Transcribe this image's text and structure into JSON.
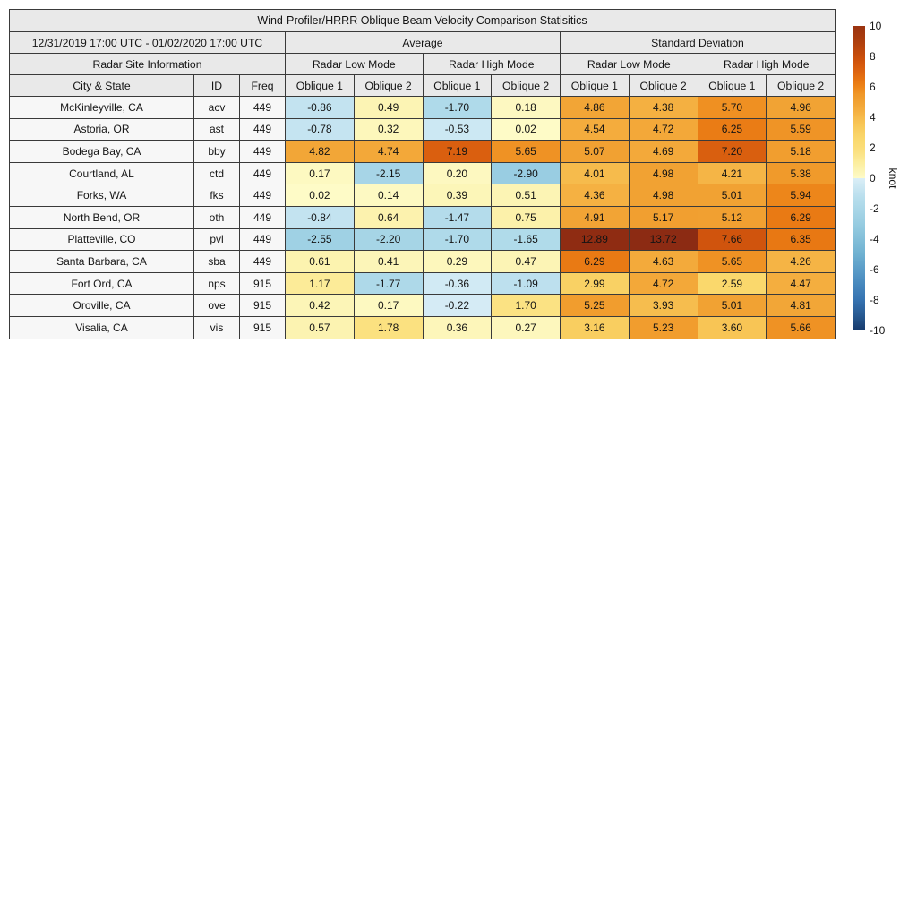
{
  "chart_data": {
    "type": "heatmap",
    "title": "Wind-Profiler/HRRR Oblique Beam Velocity Comparison Statisitics",
    "period": "12/31/2019 17:00 UTC - 01/02/2020 17:00 UTC",
    "col_groups": {
      "site": "Radar Site Information",
      "average": "Average",
      "std": "Standard Deviation",
      "low_mode": "Radar Low Mode",
      "high_mode": "Radar High Mode"
    },
    "col_headers": {
      "city": "City & State",
      "id": "ID",
      "freq": "Freq",
      "oblique1": "Oblique 1",
      "oblique2": "Oblique 2"
    },
    "value_columns": [
      "Average Radar Low Mode Oblique 1",
      "Average Radar Low Mode Oblique 2",
      "Average Radar High Mode Oblique 1",
      "Average Radar High Mode Oblique 2",
      "Std Dev Radar Low Mode Oblique 1",
      "Std Dev Radar Low Mode Oblique 2",
      "Std Dev Radar High Mode Oblique 1",
      "Std Dev Radar High Mode Oblique 2"
    ],
    "rows": [
      {
        "city": "McKinleyville, CA",
        "id": "acv",
        "freq": "449",
        "values": [
          "-0.86",
          "0.49",
          "-1.70",
          "0.18",
          "4.86",
          "4.38",
          "5.70",
          "4.96"
        ]
      },
      {
        "city": "Astoria, OR",
        "id": "ast",
        "freq": "449",
        "values": [
          "-0.78",
          "0.32",
          "-0.53",
          "0.02",
          "4.54",
          "4.72",
          "6.25",
          "5.59"
        ]
      },
      {
        "city": "Bodega Bay, CA",
        "id": "bby",
        "freq": "449",
        "values": [
          "4.82",
          "4.74",
          "7.19",
          "5.65",
          "5.07",
          "4.69",
          "7.20",
          "5.18"
        ]
      },
      {
        "city": "Courtland, AL",
        "id": "ctd",
        "freq": "449",
        "values": [
          "0.17",
          "-2.15",
          "0.20",
          "-2.90",
          "4.01",
          "4.98",
          "4.21",
          "5.38"
        ]
      },
      {
        "city": "Forks, WA",
        "id": "fks",
        "freq": "449",
        "values": [
          "0.02",
          "0.14",
          "0.39",
          "0.51",
          "4.36",
          "4.98",
          "5.01",
          "5.94"
        ]
      },
      {
        "city": "North Bend, OR",
        "id": "oth",
        "freq": "449",
        "values": [
          "-0.84",
          "0.64",
          "-1.47",
          "0.75",
          "4.91",
          "5.17",
          "5.12",
          "6.29"
        ]
      },
      {
        "city": "Platteville, CO",
        "id": "pvl",
        "freq": "449",
        "values": [
          "-2.55",
          "-2.20",
          "-1.70",
          "-1.65",
          "12.89",
          "13.72",
          "7.66",
          "6.35"
        ]
      },
      {
        "city": "Santa Barbara, CA",
        "id": "sba",
        "freq": "449",
        "values": [
          "0.61",
          "0.41",
          "0.29",
          "0.47",
          "6.29",
          "4.63",
          "5.65",
          "4.26"
        ]
      },
      {
        "city": "Fort Ord, CA",
        "id": "nps",
        "freq": "915",
        "values": [
          "1.17",
          "-1.77",
          "-0.36",
          "-1.09",
          "2.99",
          "4.72",
          "2.59",
          "4.47"
        ]
      },
      {
        "city": "Oroville, CA",
        "id": "ove",
        "freq": "915",
        "values": [
          "0.42",
          "0.17",
          "-0.22",
          "1.70",
          "5.25",
          "3.93",
          "5.01",
          "4.81"
        ]
      },
      {
        "city": "Visalia, CA",
        "id": "vis",
        "freq": "915",
        "values": [
          "0.57",
          "1.78",
          "0.36",
          "0.27",
          "3.16",
          "5.23",
          "3.60",
          "5.66"
        ]
      }
    ],
    "colorbar": {
      "label": "knot",
      "min": -10,
      "max": 10,
      "ticks": [
        10,
        8,
        6,
        4,
        2,
        0,
        -2,
        -4,
        -6,
        -8,
        -10
      ]
    }
  },
  "colors": {
    "header_bg": "#e9e9e9",
    "site_bg": "#f7f7f7",
    "border": "#3a3a3a",
    "cmap_pos": [
      [
        0,
        "#fefbc8"
      ],
      [
        0.5,
        "#fcf4b4"
      ],
      [
        1,
        "#fcee9f"
      ],
      [
        1.5,
        "#fbe58b"
      ],
      [
        2,
        "#fbdd78"
      ],
      [
        2.5,
        "#fad96e"
      ],
      [
        3,
        "#f9d164"
      ],
      [
        3.5,
        "#f8c757"
      ],
      [
        4,
        "#f6bb4c"
      ],
      [
        4.5,
        "#f4ad3e"
      ],
      [
        5,
        "#f1a233"
      ],
      [
        5.5,
        "#f09829"
      ],
      [
        6,
        "#ed8418"
      ],
      [
        6.5,
        "#e67311"
      ],
      [
        7,
        "#dd6410"
      ],
      [
        7.5,
        "#d4570d"
      ],
      [
        8,
        "#c84d0c"
      ],
      [
        9,
        "#ad3f0e"
      ],
      [
        10,
        "#9a3310"
      ],
      [
        14,
        "#8b2a13"
      ]
    ],
    "cmap_neg": [
      [
        0,
        "#dbeef7"
      ],
      [
        0.5,
        "#cde8f3"
      ],
      [
        1,
        "#bfe1ef"
      ],
      [
        1.5,
        "#b3dceb"
      ],
      [
        2,
        "#aad7e8"
      ],
      [
        2.5,
        "#a0d1e4"
      ],
      [
        3,
        "#97cce1"
      ],
      [
        3.5,
        "#8dc6dd"
      ],
      [
        4,
        "#83bfd9"
      ],
      [
        5,
        "#6fb1d1"
      ],
      [
        6,
        "#5a9cc8"
      ],
      [
        7,
        "#4687bd"
      ],
      [
        8,
        "#3673b1"
      ],
      [
        9,
        "#285a92"
      ],
      [
        10,
        "#163a6c"
      ]
    ]
  }
}
